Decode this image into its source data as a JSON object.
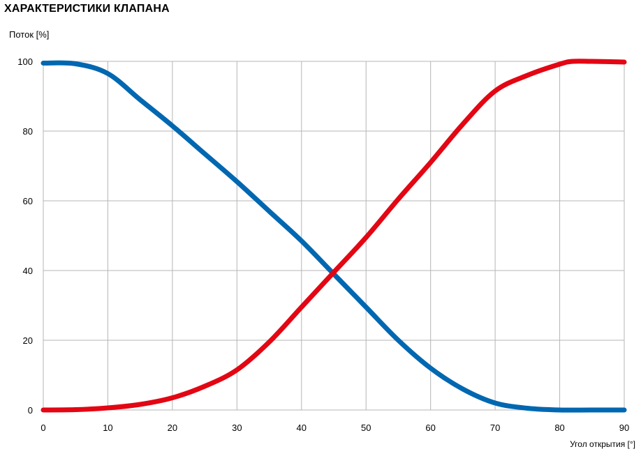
{
  "chart_data": {
    "type": "line",
    "title": "ХАРАКТЕРИСТИКИ КЛАПАНА",
    "ylabel": "Поток [%]",
    "xlabel": "Угол открытия [°]",
    "xlim": [
      0,
      90
    ],
    "ylim": [
      0,
      100
    ],
    "x_ticks": [
      0,
      10,
      20,
      30,
      40,
      50,
      60,
      70,
      80,
      90
    ],
    "y_ticks": [
      0,
      20,
      40,
      60,
      80,
      100
    ],
    "grid": true,
    "colors": {
      "series_blue": "#0067b1",
      "series_red": "#e30613",
      "grid": "#b5b5b5",
      "axis": "#888888"
    },
    "series": [
      {
        "x": [
          0,
          5,
          10,
          15,
          20,
          25,
          30,
          35,
          40,
          45,
          50,
          55,
          60,
          65,
          70,
          75,
          80,
          85,
          90
        ],
        "values": [
          99.5,
          99.3,
          96.5,
          89,
          81.5,
          73.5,
          65.5,
          57,
          48.5,
          39,
          29.5,
          20,
          12,
          6,
          2,
          0.5,
          0,
          0,
          0
        ]
      },
      {
        "x": [
          0,
          5,
          10,
          15,
          20,
          25,
          30,
          35,
          40,
          45,
          50,
          55,
          60,
          65,
          70,
          75,
          80,
          82,
          85,
          90
        ],
        "values": [
          0,
          0.1,
          0.6,
          1.6,
          3.5,
          6.8,
          11.5,
          19.5,
          29.5,
          39.5,
          49.5,
          60.5,
          71,
          82,
          91.5,
          96,
          99.2,
          100,
          100,
          99.8
        ]
      }
    ]
  }
}
